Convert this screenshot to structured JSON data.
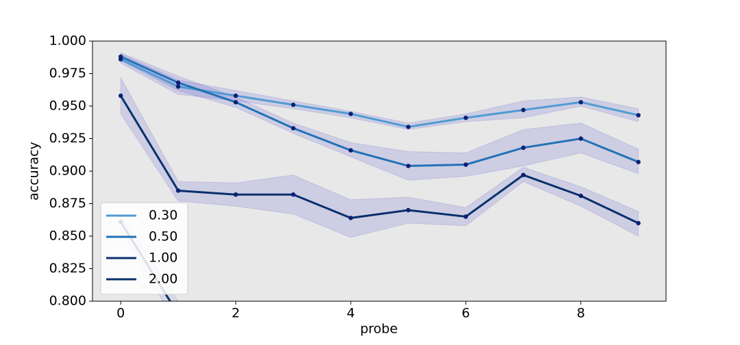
{
  "chart_data": {
    "type": "line",
    "xlabel": "probe",
    "ylabel": "accuracy",
    "x": [
      0,
      1,
      2,
      3,
      4,
      5,
      6,
      7,
      8,
      9
    ],
    "xlim": [
      -0.49,
      9.48
    ],
    "ylim": [
      0.8,
      1.0
    ],
    "xticks": [
      0,
      2,
      4,
      6,
      8
    ],
    "yticks": [
      {
        "value": 0.8,
        "label": "0.800"
      },
      0.825,
      {
        "value": 0.85,
        "label": "0.850"
      },
      0.875,
      {
        "value": 0.9,
        "label": "0.900"
      },
      0.925,
      {
        "value": 0.95,
        "label": "0.950"
      },
      0.975,
      {
        "value": 1.0,
        "label": "1.000"
      }
    ],
    "legend": "lower left",
    "marker_color": "#0b1f73",
    "band_color": "#3333cc",
    "background": "#e8e8e8",
    "series": [
      {
        "name": "0.30",
        "color": "#4f9bd3",
        "values": [
          0.986,
          0.965,
          0.958,
          0.951,
          0.944,
          0.934,
          0.941,
          0.947,
          0.953,
          0.943
        ],
        "lower": [
          0.983,
          0.959,
          0.954,
          0.948,
          0.941,
          0.932,
          0.938,
          0.941,
          0.95,
          0.938
        ],
        "upper": [
          0.99,
          0.97,
          0.962,
          0.954,
          0.946,
          0.937,
          0.944,
          0.954,
          0.957,
          0.948
        ]
      },
      {
        "name": "0.50",
        "color": "#2171b5",
        "values": [
          0.988,
          0.968,
          0.953,
          0.933,
          0.916,
          0.904,
          0.905,
          0.918,
          0.925,
          0.907
        ],
        "lower": [
          0.985,
          0.962,
          0.949,
          0.929,
          0.911,
          0.893,
          0.896,
          0.904,
          0.914,
          0.898
        ],
        "upper": [
          0.991,
          0.973,
          0.957,
          0.937,
          0.922,
          0.915,
          0.914,
          0.932,
          0.937,
          0.917
        ]
      },
      {
        "name": "1.00",
        "color": "#08306b",
        "values": [
          0.958,
          0.885,
          0.882,
          0.882,
          0.864,
          0.87,
          0.865,
          0.897,
          0.881,
          0.86
        ],
        "lower": [
          0.944,
          0.877,
          0.873,
          0.867,
          0.849,
          0.86,
          0.858,
          0.892,
          0.873,
          0.85
        ],
        "upper": [
          0.972,
          0.892,
          0.891,
          0.897,
          0.878,
          0.88,
          0.872,
          0.903,
          0.888,
          0.869
        ]
      },
      {
        "name": "2.00",
        "color": "#08306b",
        "values": [
          0.861,
          0.79,
          null,
          null,
          null,
          null,
          null,
          null,
          null,
          null
        ],
        "lower": [
          0.855,
          0.78,
          null,
          null,
          null,
          null,
          null,
          null,
          null,
          null
        ],
        "upper": [
          0.866,
          0.8,
          null,
          null,
          null,
          null,
          null,
          null,
          null,
          null
        ]
      }
    ]
  }
}
